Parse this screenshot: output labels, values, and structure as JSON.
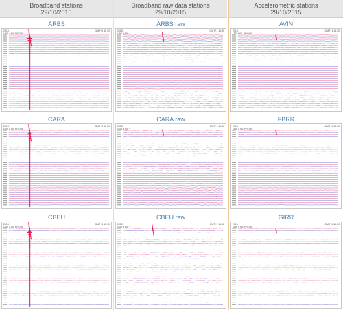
{
  "columns": [
    {
      "title": "Broadband stations",
      "date": "29/10/2015"
    },
    {
      "title": "Broadband raw data stations",
      "date": "29/10/2015"
    },
    {
      "title": "Accelerometric stations",
      "date": "29/10/2015"
    }
  ],
  "colors": {
    "trace_red": "#e8164a",
    "trace_blue": "#3c3cc8",
    "title_blue": "#4a7fb0",
    "divider_orange": "#f0c89a"
  },
  "panels": [
    {
      "name": "ARBS",
      "header_left": "2015",
      "header_left2": "UBS a FIL PROUF",
      "header_right": "GMT+1 15:30",
      "event": 0.21,
      "event_row": 1,
      "event_strength": 1.0,
      "noise": 0.25
    },
    {
      "name": "ARBS raw",
      "header_left": "2015",
      "header_left2": "UBS a FIL +",
      "header_right": "GMT+1 15:30",
      "event": 0.4,
      "event_row": 1,
      "event_strength": 0.55,
      "noise": 0.6
    },
    {
      "name": "AVIN",
      "header_left": "2015",
      "header_left2": "LTD a FIL PROUF",
      "header_right": "GMT+1 15:30",
      "event": 0.38,
      "event_row": 1,
      "event_strength": 0.35,
      "noise": 0.45
    },
    {
      "name": "CARA",
      "header_left": "2015",
      "header_left2": "UBS a FIL PROUF",
      "header_right": "GMT+1 15:30",
      "event": 0.21,
      "event_row": 1,
      "event_strength": 1.0,
      "noise": 0.3
    },
    {
      "name": "CARA raw",
      "header_left": "2015",
      "header_left2": "UBS a FIL +",
      "header_right": "GMT+1 15:30",
      "event": 0.4,
      "event_row": 1,
      "event_strength": 0.35,
      "noise": 0.6
    },
    {
      "name": "FBRR",
      "header_left": "2015",
      "header_left2": "UBS a FIL PROUF",
      "header_right": "GMT+1 15:30",
      "event": 0.38,
      "event_row": 1,
      "event_strength": 0.3,
      "noise": 0.3
    },
    {
      "name": "CBEU",
      "header_left": "2015",
      "header_left2": "UBS a FIL PROUF",
      "header_right": "GMT+1 15:30",
      "event": 0.21,
      "event_row": 1,
      "event_strength": 1.0,
      "noise": 0.3
    },
    {
      "name": "CBEU raw",
      "header_left": "2015",
      "header_left2": "UBS a FIL +",
      "header_right": "GMT+1 15:30",
      "event": 0.3,
      "event_row": 1,
      "event_strength": 0.7,
      "noise": 0.6
    },
    {
      "name": "GIRR",
      "header_left": "2015",
      "header_left2": "UBS a FIL PROUF",
      "header_right": "GMT+1 15:30",
      "event": 0.38,
      "event_row": 1,
      "event_strength": 0.3,
      "noise": 0.3
    }
  ]
}
